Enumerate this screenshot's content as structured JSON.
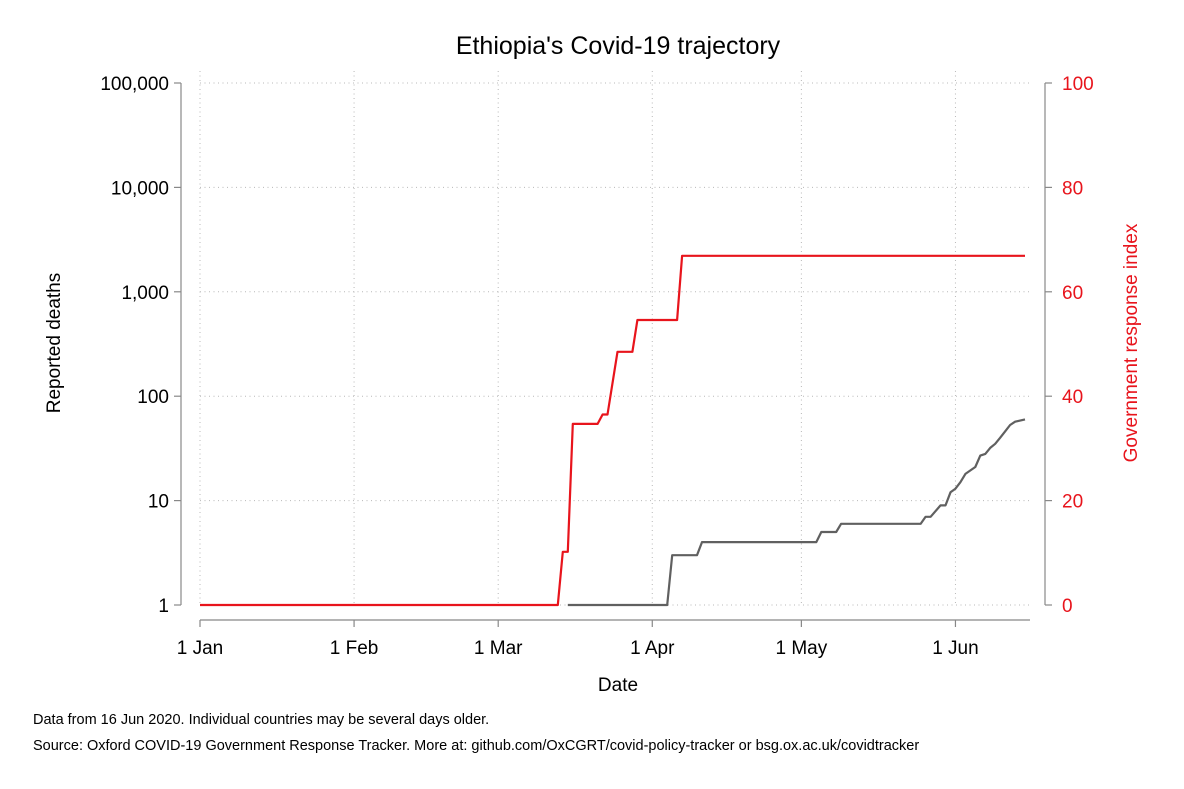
{
  "chart_data": {
    "type": "line",
    "title": "Ethiopia's Covid-19 trajectory",
    "xlabel": "Date",
    "ylabel_left": "Reported deaths",
    "ylabel_right": "Government response index",
    "x_range": [
      "2020-01-01",
      "2020-06-16"
    ],
    "x_ticks": [
      {
        "date": "2020-01-01",
        "label": "1 Jan"
      },
      {
        "date": "2020-02-01",
        "label": "1 Feb"
      },
      {
        "date": "2020-03-01",
        "label": "1 Mar"
      },
      {
        "date": "2020-04-01",
        "label": "1 Apr"
      },
      {
        "date": "2020-05-01",
        "label": "1 May"
      },
      {
        "date": "2020-06-01",
        "label": "1 Jun"
      }
    ],
    "y_left": {
      "scale": "log",
      "range": [
        1,
        100000
      ],
      "ticks": [
        {
          "value": 1,
          "label": "1"
        },
        {
          "value": 10,
          "label": "10"
        },
        {
          "value": 100,
          "label": "100"
        },
        {
          "value": 1000,
          "label": "1,000"
        },
        {
          "value": 10000,
          "label": "10,000"
        },
        {
          "value": 100000,
          "label": "100,000"
        }
      ]
    },
    "y_right": {
      "scale": "linear",
      "range": [
        0,
        100
      ],
      "ticks": [
        {
          "value": 0,
          "label": "0"
        },
        {
          "value": 20,
          "label": "20"
        },
        {
          "value": 40,
          "label": "40"
        },
        {
          "value": 60,
          "label": "60"
        },
        {
          "value": 80,
          "label": "80"
        },
        {
          "value": 100,
          "label": "100"
        }
      ]
    },
    "grid": true,
    "legend": "none",
    "series": [
      {
        "axis": "right",
        "color": "#e8141c",
        "points": [
          {
            "x": "2020-01-01",
            "y": 0
          },
          {
            "x": "2020-03-13",
            "y": 0
          },
          {
            "x": "2020-03-14",
            "y": 10.2
          },
          {
            "x": "2020-03-15",
            "y": 10.2
          },
          {
            "x": "2020-03-16",
            "y": 34.7
          },
          {
            "x": "2020-03-21",
            "y": 34.7
          },
          {
            "x": "2020-03-22",
            "y": 36.5
          },
          {
            "x": "2020-03-23",
            "y": 36.5
          },
          {
            "x": "2020-03-25",
            "y": 48.5
          },
          {
            "x": "2020-03-28",
            "y": 48.5
          },
          {
            "x": "2020-03-29",
            "y": 54.6
          },
          {
            "x": "2020-04-06",
            "y": 54.6
          },
          {
            "x": "2020-04-07",
            "y": 66.9
          },
          {
            "x": "2020-06-15",
            "y": 66.9
          }
        ]
      },
      {
        "axis": "left",
        "color": "#606060",
        "points": [
          {
            "x": "2020-03-15",
            "y": 1
          },
          {
            "x": "2020-04-04",
            "y": 1
          },
          {
            "x": "2020-04-05",
            "y": 3
          },
          {
            "x": "2020-04-10",
            "y": 3
          },
          {
            "x": "2020-04-11",
            "y": 4
          },
          {
            "x": "2020-05-04",
            "y": 4
          },
          {
            "x": "2020-05-05",
            "y": 5
          },
          {
            "x": "2020-05-08",
            "y": 5
          },
          {
            "x": "2020-05-09",
            "y": 6
          },
          {
            "x": "2020-05-25",
            "y": 6
          },
          {
            "x": "2020-05-26",
            "y": 7
          },
          {
            "x": "2020-05-27",
            "y": 7
          },
          {
            "x": "2020-05-29",
            "y": 9
          },
          {
            "x": "2020-05-30",
            "y": 9
          },
          {
            "x": "2020-05-31",
            "y": 12
          },
          {
            "x": "2020-06-01",
            "y": 13
          },
          {
            "x": "2020-06-02",
            "y": 15
          },
          {
            "x": "2020-06-03",
            "y": 18
          },
          {
            "x": "2020-06-05",
            "y": 21
          },
          {
            "x": "2020-06-06",
            "y": 27
          },
          {
            "x": "2020-06-07",
            "y": 28
          },
          {
            "x": "2020-06-08",
            "y": 32
          },
          {
            "x": "2020-06-09",
            "y": 35
          },
          {
            "x": "2020-06-10",
            "y": 40
          },
          {
            "x": "2020-06-11",
            "y": 46
          },
          {
            "x": "2020-06-12",
            "y": 53
          },
          {
            "x": "2020-06-13",
            "y": 57
          },
          {
            "x": "2020-06-15",
            "y": 60
          }
        ]
      }
    ]
  },
  "footnotes": {
    "data_note": "Data from 16 Jun 2020. Individual countries may be several days older.",
    "source_note": "Source: Oxford COVID-19 Government Response Tracker. More at: github.com/OxCGRT/covid-policy-tracker or bsg.ox.ac.uk/covidtracker"
  }
}
